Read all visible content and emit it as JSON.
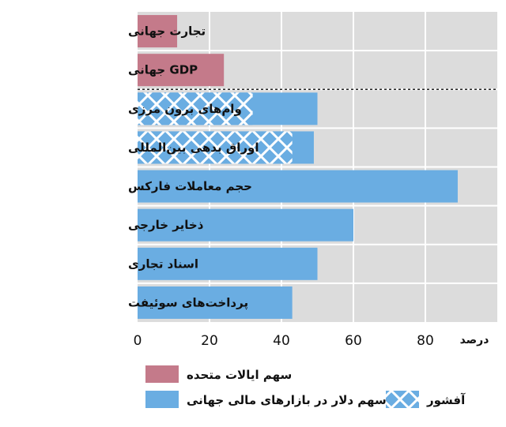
{
  "chart_data": {
    "type": "bar",
    "orientation": "horizontal",
    "categories": [
      "تجارت جهانی",
      "GDP جهانی",
      "وام‌های برون مرزی",
      "اوراق بدهی بین‌المللی",
      "حجم معاملات فارکس",
      "ذخایر خارجی",
      "اسناد تجاری",
      "پرداخت‌های سوئیفت"
    ],
    "series": [
      {
        "name": "سهم ایالات متحده",
        "color": "#c47a8a",
        "values": [
          11,
          24,
          null,
          null,
          null,
          null,
          null,
          null
        ]
      },
      {
        "name": "سهم دلار در بازارهای مالی جهانی",
        "color": "#6aade2",
        "values": [
          null,
          null,
          50,
          49,
          89,
          60,
          50,
          43
        ]
      },
      {
        "name": "آفشور",
        "color": "#6aade2",
        "pattern": "crosshatch",
        "values": [
          null,
          null,
          32,
          43,
          null,
          null,
          null,
          null
        ]
      }
    ],
    "xlabel": "درصد",
    "xticks": [
      0,
      20,
      40,
      60,
      80
    ],
    "xlim": [
      0,
      100
    ],
    "grid": true,
    "separator_after_category": 1,
    "legend_position": "bottom"
  }
}
